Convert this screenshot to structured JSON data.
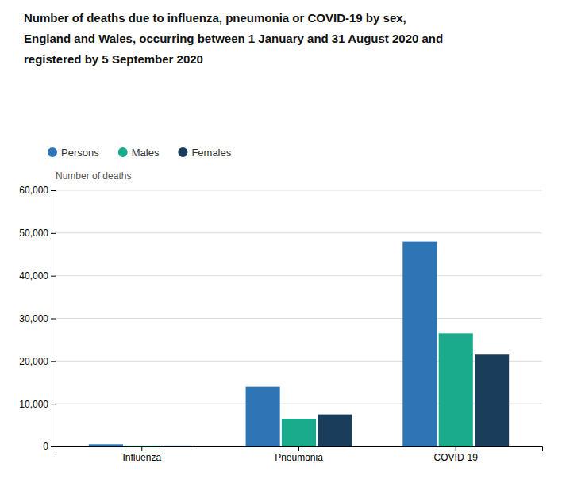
{
  "chart_data": {
    "type": "bar",
    "title": "Number of deaths due to influenza, pneumonia or COVID-19 by sex,\nEngland and Wales, occurring between 1 January and 31 August 2020 and\nregistered by 5 September 2020",
    "ylabel": "Number of deaths",
    "categories": [
      "Influenza",
      "Pneumonia",
      "COVID-19"
    ],
    "series": [
      {
        "name": "Persons",
        "color": "#2e75b6",
        "values": [
          500,
          14000,
          48000
        ]
      },
      {
        "name": "Males",
        "color": "#1aaa8c",
        "values": [
          200,
          6500,
          26500
        ]
      },
      {
        "name": "Females",
        "color": "#1a3d5c",
        "values": [
          200,
          7500,
          21500
        ]
      }
    ],
    "ylim": [
      0,
      60000
    ],
    "yticks": [
      0,
      {
        "value": 10000,
        "label": "10,000"
      },
      {
        "value": 20000,
        "label": "20,000"
      },
      {
        "value": 30000,
        "label": "30,000"
      },
      {
        "value": 40000,
        "label": "40,000"
      },
      {
        "value": 50000,
        "label": "50,000"
      },
      {
        "value": 60000,
        "label": "60,000"
      }
    ],
    "grid": true,
    "legend": "top-left"
  }
}
